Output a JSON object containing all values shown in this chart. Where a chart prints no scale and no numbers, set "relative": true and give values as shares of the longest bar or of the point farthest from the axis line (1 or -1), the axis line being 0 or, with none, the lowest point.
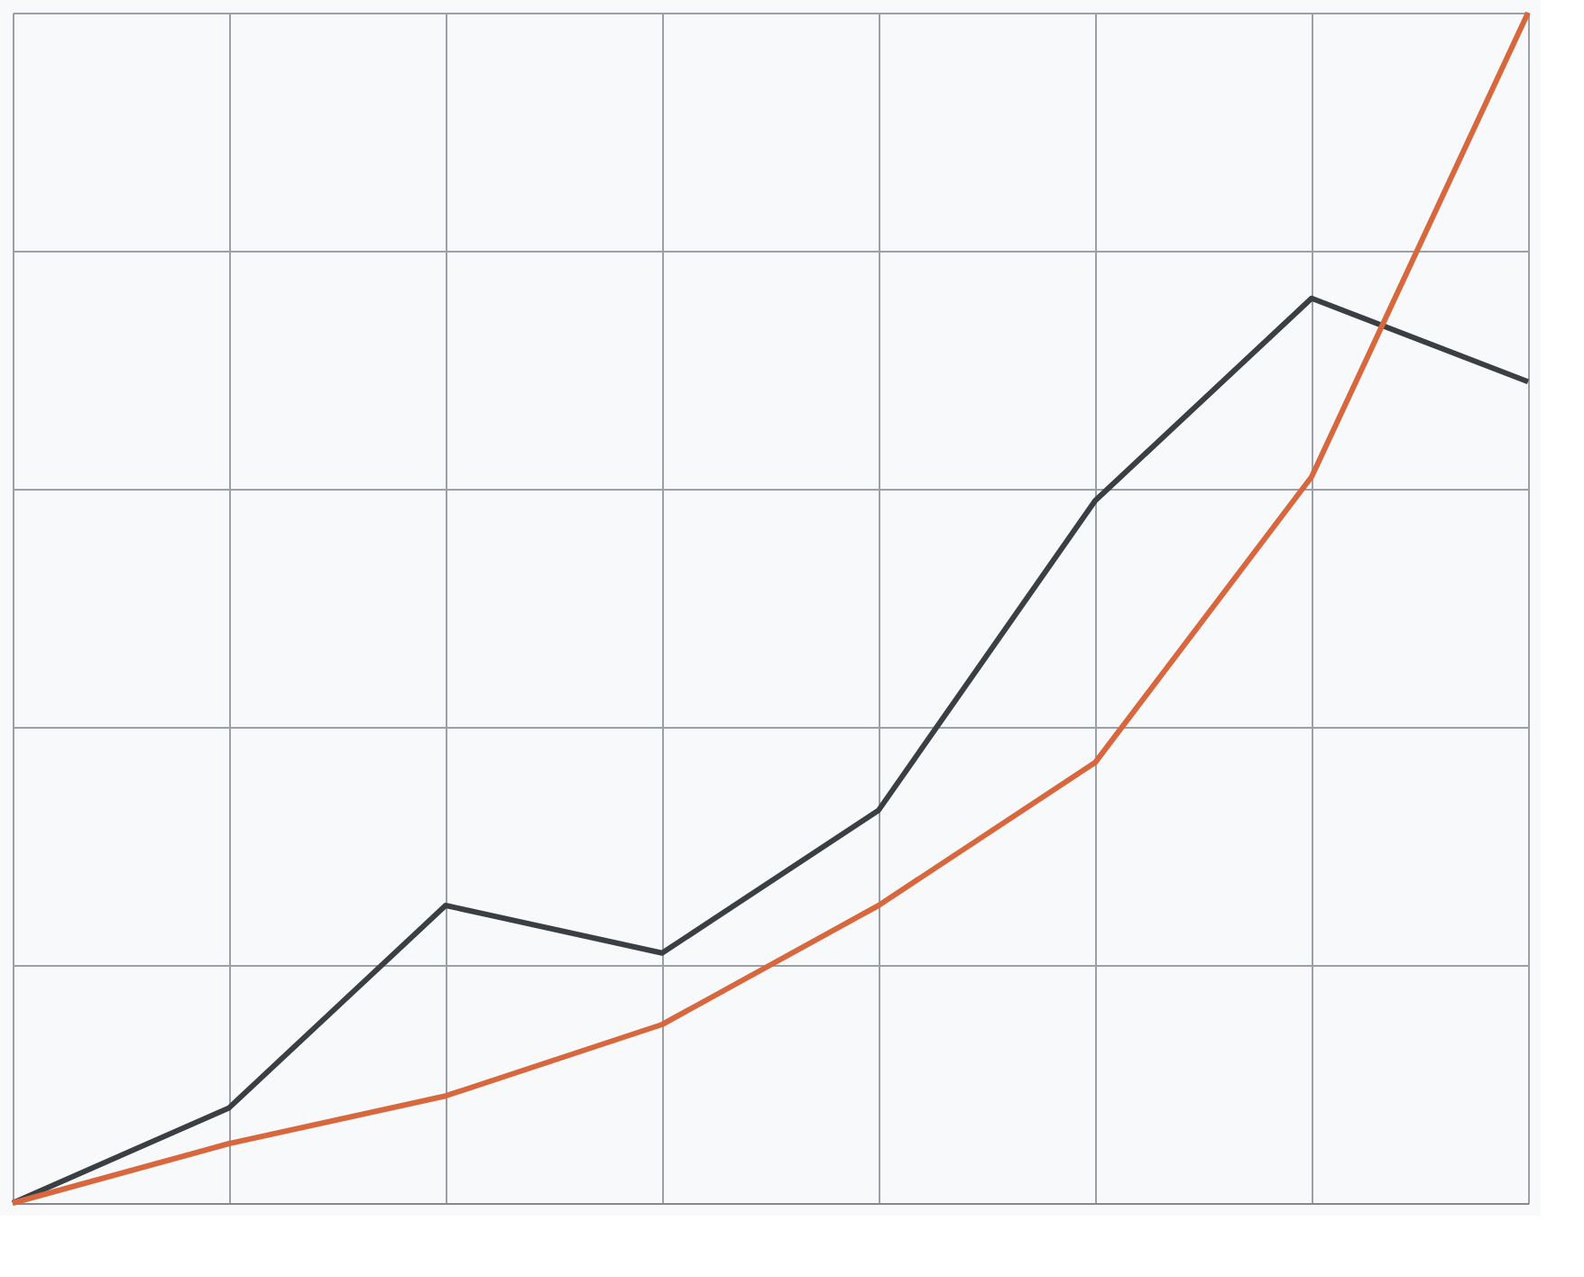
{
  "chart_data": {
    "type": "line",
    "relative": true,
    "grid": true,
    "marker": "none",
    "line_style": "solid",
    "tick_labels": false,
    "categories": [
      null,
      null,
      null,
      null,
      null,
      null,
      null,
      null
    ],
    "series": [
      {
        "color": "#3a3f44",
        "values": [
          0,
          0.08,
          0.25,
          0.21,
          0.33,
          0.59,
          0.76,
          0.69
        ]
      },
      {
        "color": "#d9673e",
        "values": [
          0,
          0.05,
          0.09,
          0.15,
          0.25,
          0.37,
          0.61,
          1.0
        ]
      }
    ]
  }
}
